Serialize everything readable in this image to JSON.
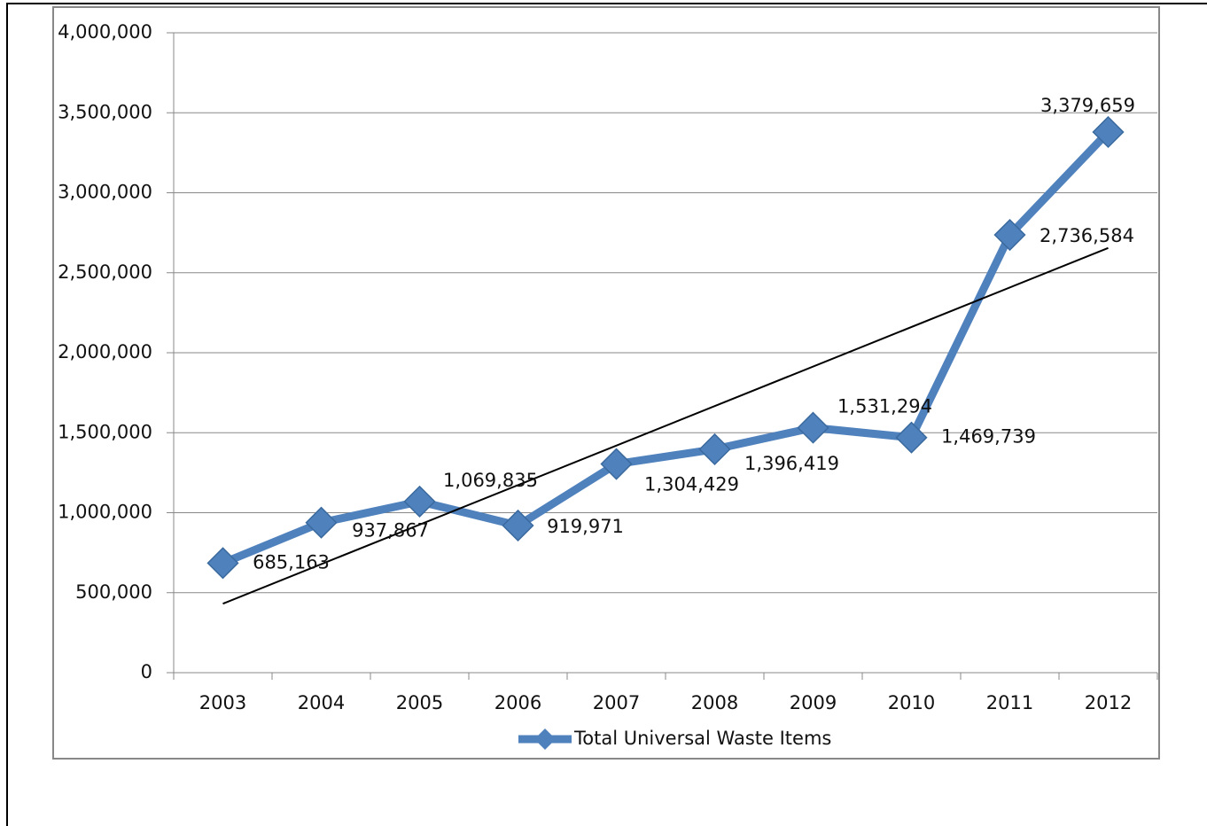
{
  "chart_data": {
    "type": "line",
    "categories": [
      "2003",
      "2004",
      "2005",
      "2006",
      "2007",
      "2008",
      "2009",
      "2010",
      "2011",
      "2012"
    ],
    "series": [
      {
        "name": "Total Universal Waste Items",
        "color": "#4f81bd",
        "values": [
          685163,
          937867,
          1069835,
          919971,
          1304429,
          1396419,
          1531294,
          1469739,
          2736584,
          3379659
        ],
        "value_labels": [
          "685,163",
          "937,867",
          "1,069,835",
          "919,971",
          "1,304,429",
          "1,396,419",
          "1,531,294",
          "1,469,739",
          "2,736,584",
          "3,379,659"
        ]
      }
    ],
    "ylim": [
      0,
      4000000
    ],
    "yticks": [
      0,
      {
        "value": 500000,
        "label": "500,000"
      },
      {
        "value": 1000000,
        "label": "1,000,000"
      },
      {
        "value": 1500000,
        "label": "1,500,000"
      },
      {
        "value": 2000000,
        "label": "2,000,000"
      },
      {
        "value": 2500000,
        "label": "2,500,000"
      },
      {
        "value": 3000000,
        "label": "3,000,000"
      },
      {
        "value": 3500000,
        "label": "3,500,000"
      },
      {
        "value": 4000000,
        "label": "4,000,000"
      }
    ],
    "grid": true,
    "trendline": "linear",
    "legend": "bottom"
  }
}
